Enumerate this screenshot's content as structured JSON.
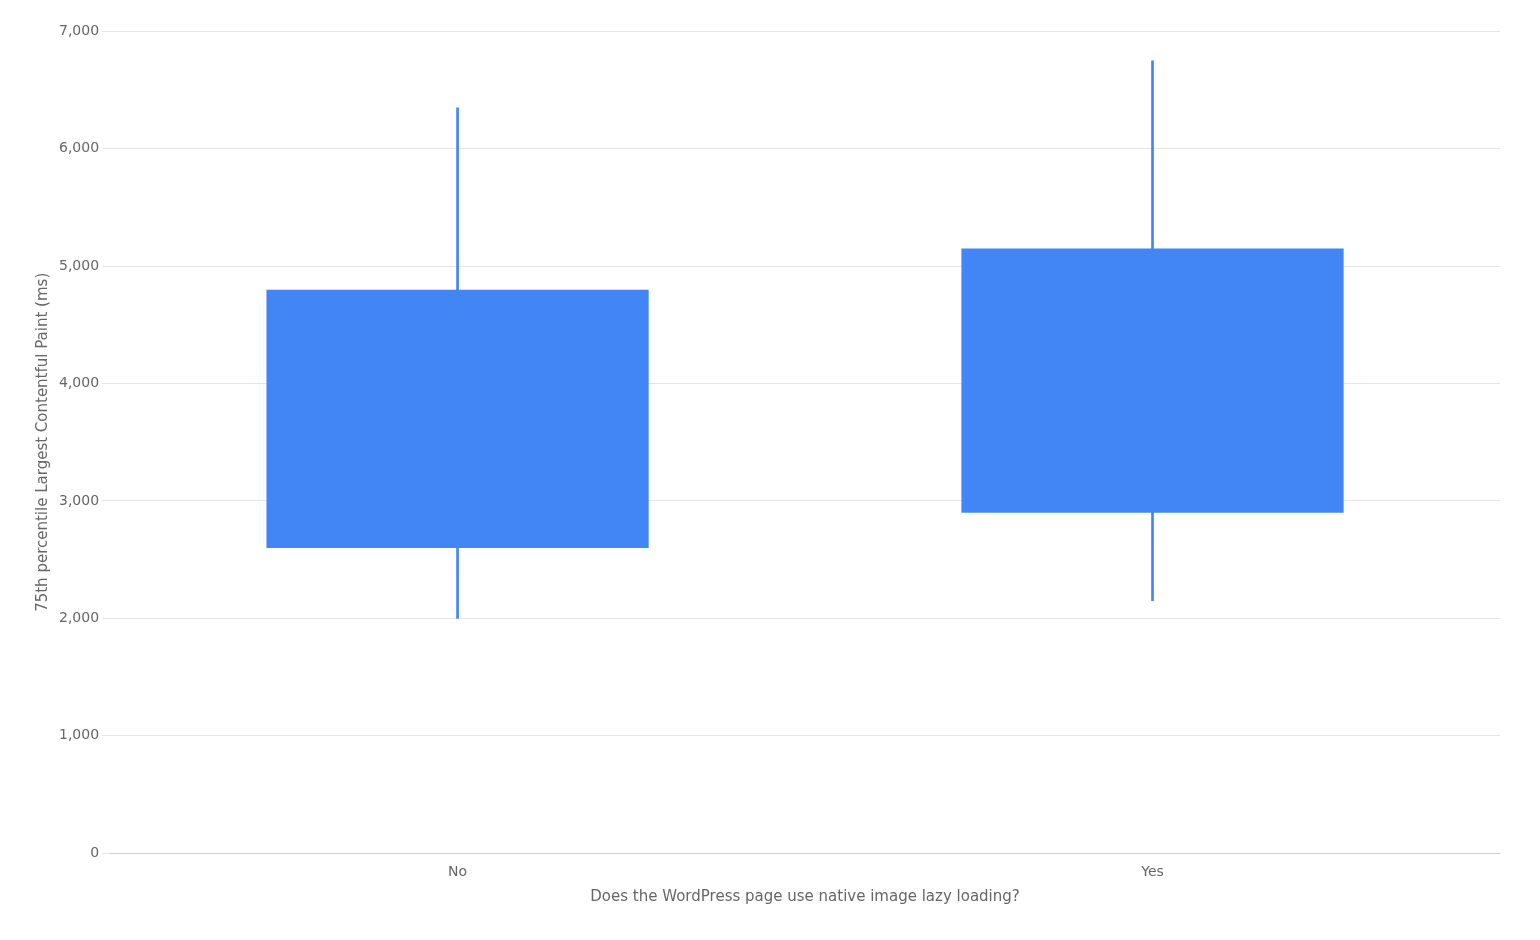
{
  "chart_data": {
    "type": "box",
    "categories": [
      "No",
      "Yes"
    ],
    "values": [
      {
        "p10": 2000,
        "p25": 2600,
        "p75": 4800,
        "p90": 6350
      },
      {
        "p10": 2150,
        "p25": 2900,
        "p75": 5150,
        "p90": 6750
      }
    ],
    "color": "#4285F4",
    "xlabel": "Does the WordPress page use native image lazy loading?",
    "ylabel": "75th percentile Largest Contentful Paint (ms)",
    "ylim": [
      0,
      7000
    ],
    "yticks": [
      0,
      {
        "value": 1000,
        "label": "1,000"
      },
      {
        "value": 2000,
        "label": "2,000"
      },
      {
        "value": 3000,
        "label": "3,000"
      },
      {
        "value": 4000,
        "label": "4,000"
      },
      {
        "value": 5000,
        "label": "5,000"
      },
      {
        "value": 6000,
        "label": "6,000"
      },
      {
        "value": 7000,
        "label": "7,000"
      }
    ],
    "grid": true
  }
}
